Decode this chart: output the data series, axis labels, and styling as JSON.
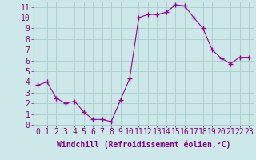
{
  "x": [
    0,
    1,
    2,
    3,
    4,
    5,
    6,
    7,
    8,
    9,
    10,
    11,
    12,
    13,
    14,
    15,
    16,
    17,
    18,
    19,
    20,
    21,
    22,
    23
  ],
  "y": [
    3.7,
    4.0,
    2.5,
    2.0,
    2.2,
    1.2,
    0.5,
    0.5,
    0.3,
    2.3,
    4.3,
    10.0,
    10.3,
    10.3,
    10.5,
    11.2,
    11.1,
    10.0,
    9.0,
    7.0,
    6.2,
    5.7,
    6.3,
    6.3
  ],
  "xlabel": "Windchill (Refroidissement éolien,°C)",
  "ylim": [
    0,
    11.5
  ],
  "xlim": [
    -0.5,
    23.5
  ],
  "yticks": [
    0,
    1,
    2,
    3,
    4,
    5,
    6,
    7,
    8,
    9,
    10,
    11
  ],
  "xticks": [
    0,
    1,
    2,
    3,
    4,
    5,
    6,
    7,
    8,
    9,
    10,
    11,
    12,
    13,
    14,
    15,
    16,
    17,
    18,
    19,
    20,
    21,
    22,
    23
  ],
  "line_color": "#990099",
  "marker": "+",
  "bg_color": "#cce8e8",
  "grid_color": "#aacccc",
  "tick_color": "#880088",
  "label_color": "#880088",
  "xlabel_fontsize": 7,
  "tick_fontsize": 7
}
